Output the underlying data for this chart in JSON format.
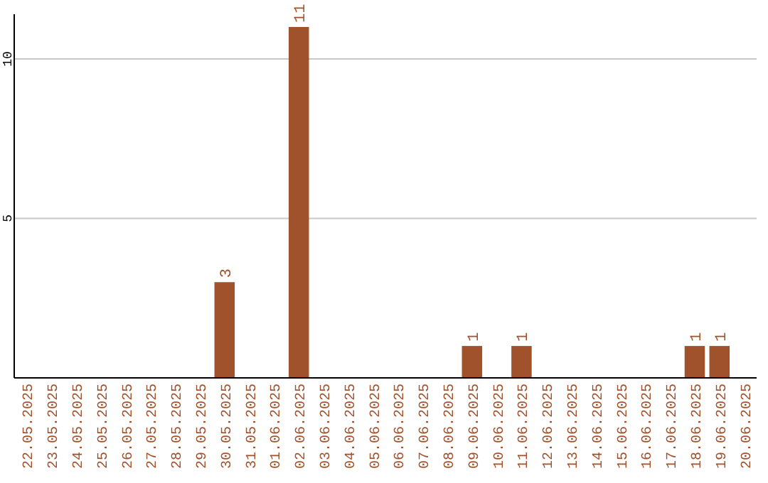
{
  "chart_data": {
    "type": "bar",
    "categories": [
      "22.05.2025",
      "23.05.2025",
      "24.05.2025",
      "25.05.2025",
      "26.05.2025",
      "27.05.2025",
      "28.05.2025",
      "29.05.2025",
      "30.05.2025",
      "31.05.2025",
      "01.06.2025",
      "02.06.2025",
      "03.06.2025",
      "04.06.2025",
      "05.06.2025",
      "06.06.2025",
      "07.06.2025",
      "08.06.2025",
      "09.06.2025",
      "10.06.2025",
      "11.06.2025",
      "12.06.2025",
      "13.06.2025",
      "14.06.2025",
      "15.06.2025",
      "16.06.2025",
      "17.06.2025",
      "18.06.2025",
      "19.06.2025",
      "20.06.2025"
    ],
    "values": [
      0,
      0,
      0,
      0,
      0,
      0,
      0,
      0,
      3,
      0,
      0,
      11,
      0,
      0,
      0,
      0,
      0,
      0,
      1,
      0,
      1,
      0,
      0,
      0,
      0,
      0,
      0,
      1,
      1,
      0
    ],
    "value_labels": [
      null,
      null,
      null,
      null,
      null,
      null,
      null,
      null,
      "3",
      null,
      null,
      "11",
      null,
      null,
      null,
      null,
      null,
      null,
      "1",
      null,
      "1",
      null,
      null,
      null,
      null,
      null,
      null,
      "1",
      "1",
      null
    ],
    "color": "#a0522d",
    "ylim": [
      0,
      11.4
    ],
    "yticks": [
      5,
      10
    ],
    "grid": "y"
  }
}
